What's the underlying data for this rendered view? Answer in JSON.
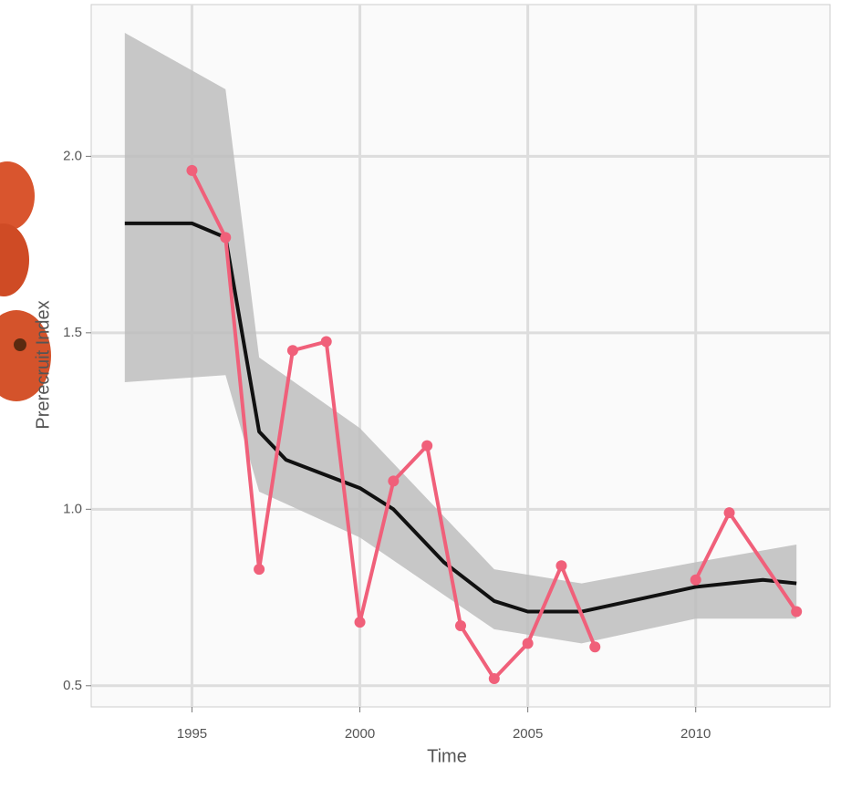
{
  "chart_data": {
    "type": "line",
    "xlabel": "Time",
    "ylabel": "Prerecruit Index",
    "xlim": [
      1992,
      2014
    ],
    "ylim": [
      0.44,
      2.43
    ],
    "xticks": [
      1995,
      2000,
      2005,
      2010
    ],
    "yticks": [
      0.5,
      {
        "value": 1,
        "label": "1.0"
      },
      1.5,
      {
        "value": 2,
        "label": "2.0"
      }
    ],
    "grid": true,
    "band": {
      "color": "#bdbdbd",
      "x": [
        1993,
        1996,
        1997,
        2000,
        2004,
        2006.6,
        2010,
        2013
      ],
      "upper": [
        2.35,
        2.19,
        1.43,
        1.23,
        0.83,
        0.79,
        0.85,
        0.9
      ],
      "lower": [
        1.36,
        1.38,
        1.05,
        0.92,
        0.66,
        0.62,
        0.69,
        0.69
      ]
    },
    "series": [
      {
        "color": "#111111",
        "markers": false,
        "x": [
          1993,
          1995,
          1996,
          1997,
          1997.8,
          2000,
          2001,
          2002.5,
          2004,
          2005,
          2006.6,
          2010,
          2012,
          2013
        ],
        "values": [
          1.81,
          1.81,
          1.77,
          1.22,
          1.14,
          1.06,
          1.0,
          0.85,
          0.74,
          0.71,
          0.71,
          0.78,
          0.8,
          0.79
        ]
      },
      {
        "color": "#f0607a",
        "markers": true,
        "x": [
          1995,
          1996,
          1997,
          1998,
          1999,
          2000,
          2001,
          2002,
          2003,
          2004,
          2005,
          2006,
          2007,
          2008,
          2009,
          2010,
          2011,
          2013
        ],
        "values": [
          1.96,
          1.77,
          0.83,
          1.45,
          1.475,
          0.68,
          1.08,
          1.18,
          0.67,
          0.52,
          0.62,
          0.84,
          0.61,
          null,
          null,
          0.8,
          0.99,
          0.71
        ]
      }
    ]
  }
}
